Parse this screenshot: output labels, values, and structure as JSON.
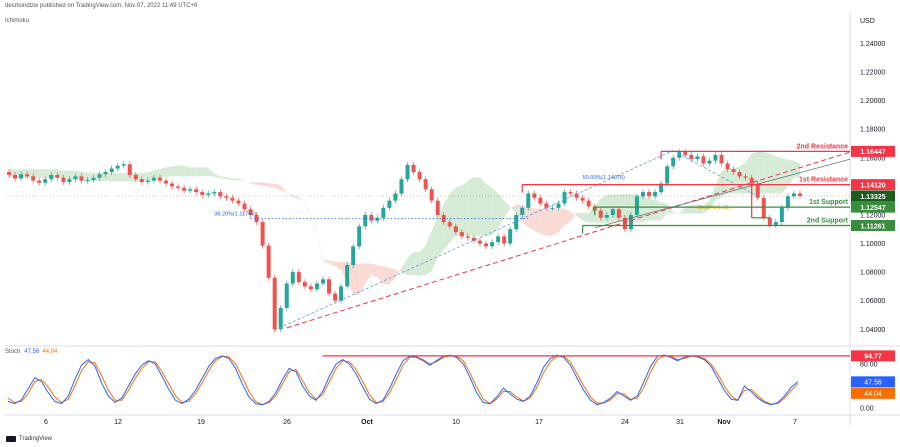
{
  "header": {
    "author_line": "desmondlzw published on TradingView.com, Nov 07, 2022 11:49 UTC+8",
    "indicator": "Ichimoku",
    "currency": "USD"
  },
  "footer": {
    "brand": "TradingView"
  },
  "chart_data": [
    {
      "type": "candlestick",
      "yaxis": {
        "ticks": [
          1.04,
          1.06,
          1.08,
          1.1,
          1.12,
          1.14,
          1.16,
          1.18,
          1.2,
          1.22,
          1.24
        ],
        "tick_labels": [
          "1.04000",
          "1.06000",
          "1.08000",
          "1.10000",
          "1.12000",
          "1.14000",
          "1.16000",
          "1.18000",
          "1.20000",
          "1.22000",
          "1.24000"
        ],
        "ylim": [
          1.029,
          1.262
        ]
      },
      "xaxis": {
        "tick_labels": [
          "6",
          "12",
          "19",
          "26",
          "Oct",
          "10",
          "17",
          "24",
          "31",
          "Nov",
          "7"
        ]
      },
      "close_series": [
        1.148,
        1.1455,
        1.1485,
        1.147,
        1.144,
        1.1425,
        1.145,
        1.148,
        1.146,
        1.143,
        1.145,
        1.147,
        1.144,
        1.1445,
        1.146,
        1.1485,
        1.15,
        1.1525,
        1.1545,
        1.1555,
        1.148,
        1.145,
        1.143,
        1.144,
        1.146,
        1.144,
        1.142,
        1.14,
        1.139,
        1.137,
        1.138,
        1.136,
        1.134,
        1.135,
        1.136,
        1.133,
        1.132,
        1.13,
        1.128,
        1.124,
        1.12,
        1.115,
        1.0985,
        1.076,
        1.04,
        1.055,
        1.072,
        1.08,
        1.073,
        1.07,
        1.068,
        1.072,
        1.075,
        1.065,
        1.06,
        1.07,
        1.085,
        1.098,
        1.112,
        1.12,
        1.116,
        1.118,
        1.125,
        1.13,
        1.135,
        1.145,
        1.155,
        1.15,
        1.145,
        1.138,
        1.13,
        1.12,
        1.115,
        1.112,
        1.108,
        1.105,
        1.104,
        1.102,
        1.1,
        1.098,
        1.101,
        1.105,
        1.1,
        1.11,
        1.12,
        1.125,
        1.135,
        1.132,
        1.128,
        1.125,
        1.125,
        1.128,
        1.136,
        1.135,
        1.132,
        1.13,
        1.126,
        1.123,
        1.118,
        1.12,
        1.124,
        1.118,
        1.11,
        1.12,
        1.133,
        1.136,
        1.133,
        1.136,
        1.142,
        1.154,
        1.16,
        1.164,
        1.162,
        1.159,
        1.161,
        1.156,
        1.158,
        1.162,
        1.156,
        1.152,
        1.15,
        1.147,
        1.146,
        1.142,
        1.132,
        1.118,
        1.113,
        1.115,
        1.125,
        1.133,
        1.135,
        1.1333
      ],
      "stochastic": {
        "label": "Stoch",
        "k": 47.56,
        "d": 44.04,
        "yaxis_labels": [
          "80.00",
          "0.00"
        ],
        "k_series": [
          12,
          8,
          15,
          35,
          55,
          48,
          28,
          12,
          8,
          22,
          52,
          78,
          88,
          76,
          45,
          22,
          10,
          18,
          40,
          62,
          78,
          86,
          80,
          58,
          34,
          14,
          8,
          16,
          32,
          54,
          76,
          90,
          95,
          90,
          72,
          44,
          20,
          8,
          6,
          12,
          28,
          52,
          72,
          66,
          40,
          22,
          14,
          30,
          58,
          80,
          88,
          80,
          62,
          38,
          16,
          8,
          14,
          36,
          62,
          86,
          94,
          92,
          86,
          78,
          86,
          94,
          96,
          92,
          80,
          56,
          28,
          10,
          8,
          20,
          36,
          26,
          16,
          12,
          22,
          46,
          74,
          90,
          96,
          92,
          78,
          54,
          32,
          14,
          6,
          10,
          18,
          30,
          22,
          14,
          22,
          48,
          76,
          94,
          96,
          92,
          86,
          92,
          95,
          93,
          88,
          76,
          54,
          32,
          16,
          14,
          40,
          30,
          18,
          10,
          6,
          10,
          22,
          38,
          47.56
        ],
        "d_series": [
          18,
          10,
          12,
          26,
          48,
          52,
          38,
          20,
          10,
          16,
          40,
          68,
          84,
          82,
          58,
          32,
          14,
          14,
          32,
          54,
          72,
          84,
          84,
          66,
          44,
          22,
          10,
          12,
          26,
          46,
          68,
          86,
          94,
          93,
          80,
          56,
          30,
          12,
          6,
          10,
          22,
          44,
          66,
          70,
          50,
          28,
          16,
          24,
          48,
          72,
          86,
          84,
          70,
          48,
          24,
          10,
          11,
          28,
          52,
          78,
          92,
          93,
          88,
          80,
          84,
          92,
          95,
          94,
          86,
          64,
          38,
          16,
          8,
          16,
          30,
          30,
          20,
          13,
          18,
          38,
          64,
          84,
          94,
          94,
          84,
          62,
          40,
          20,
          9,
          9,
          15,
          26,
          26,
          16,
          18,
          38,
          66,
          88,
          95,
          94,
          88,
          90,
          94,
          94,
          90,
          80,
          62,
          40,
          22,
          14,
          32,
          34,
          22,
          12,
          7,
          8,
          18,
          32,
          44.04
        ],
        "hline": {
          "value": 94.77,
          "label": "94.77"
        }
      }
    }
  ],
  "levels": [
    {
      "name": "2nd Resistance",
      "value": 1.16447,
      "label": "1.16447",
      "color": "#f23645"
    },
    {
      "name": "1st Resistance",
      "value": 1.1412,
      "label": "1.14120",
      "color": "#f23645"
    },
    {
      "name": "last price",
      "value": 1.13325,
      "label": "1.13325",
      "color": "#1b5e20"
    },
    {
      "name": "1st Support",
      "value": 1.12547,
      "label": "1.12547",
      "color": "#388e3c"
    },
    {
      "name": "2nd Support",
      "value": 1.11261,
      "label": "1.11261",
      "color": "#388e3c"
    }
  ],
  "annotations": {
    "fib_left": "38.20%(1.11745)",
    "fib_top": "50.00%(1.14075)",
    "fib_mid": "38.20%(1.12..."
  },
  "colors": {
    "up": "#26a69a",
    "down": "#ef5350",
    "cloud_bear": "#f8d4cc",
    "cloud_bull": "#cfe8cf",
    "k_line": "#2962ff",
    "d_line": "#ff6d00"
  }
}
